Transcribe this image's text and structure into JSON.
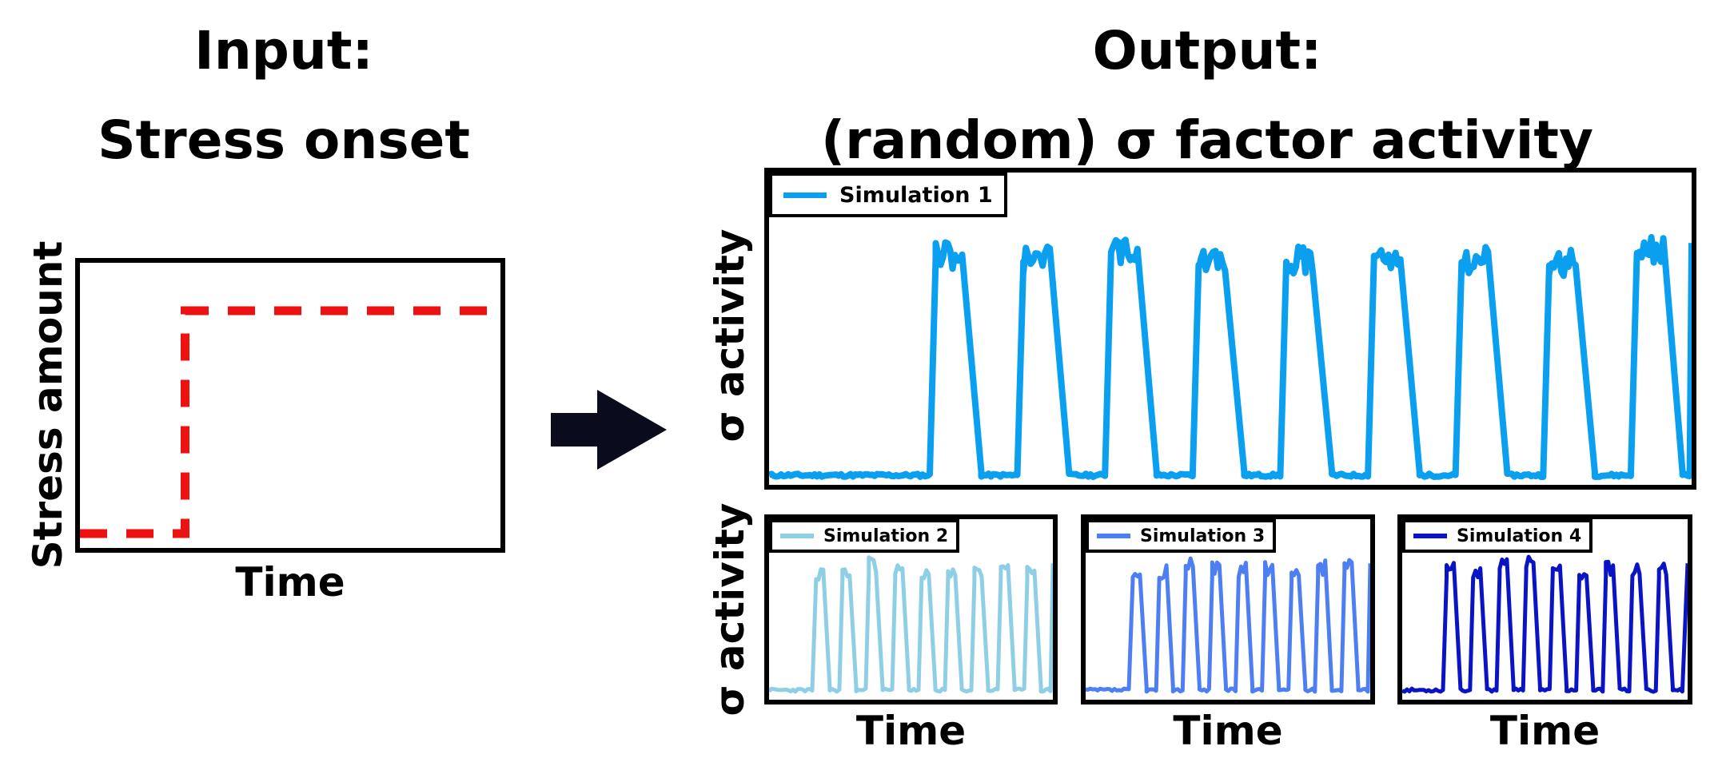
{
  "input": {
    "title_line1": "Input:",
    "title_line2": "Stress onset",
    "xlabel": "Time",
    "ylabel": "Stress amount",
    "line_color": "#ee1111"
  },
  "output": {
    "title_line1": "Output:",
    "title_line2": "(random) σ factor activity",
    "ylabel_top": "σ activity",
    "ylabel_bottom": "σ activity",
    "xlabel_sim2": "Time",
    "xlabel_sim3": "Time",
    "xlabel_sim4": "Time"
  },
  "arrow_color": "#0b0b1e",
  "chart_data": [
    {
      "type": "line",
      "title": "Stress onset",
      "xlabel": "Time",
      "ylabel": "Stress amount",
      "series": [
        {
          "x": [
            0,
            0.25,
            0.25,
            1
          ],
          "values": [
            0,
            0,
            1,
            1
          ],
          "style": "dashed",
          "color": "#ee1111"
        }
      ]
    },
    {
      "type": "line",
      "xlabel": "",
      "ylabel": "σ activity",
      "legend": "top-left",
      "series": [
        {
          "name": "Simulation 1",
          "color": "#0b9fef",
          "onset": 0.175,
          "peaks": 9,
          "period": 0.095
        }
      ]
    },
    {
      "type": "line",
      "xlabel": "Time",
      "ylabel": "σ activity",
      "legend": "top-left",
      "series": [
        {
          "name": "Simulation 2",
          "color": "#8ecfe6",
          "onset": 0.16,
          "peaks": 9,
          "period": 0.093
        }
      ]
    },
    {
      "type": "line",
      "xlabel": "Time",
      "legend": "top-left",
      "series": [
        {
          "name": "Simulation 3",
          "color": "#4d7ef2",
          "onset": 0.16,
          "peaks": 9,
          "period": 0.093
        }
      ]
    },
    {
      "type": "line",
      "xlabel": "Time",
      "legend": "top-left",
      "series": [
        {
          "name": "Simulation 4",
          "color": "#0a14c4",
          "onset": 0.15,
          "peaks": 9,
          "period": 0.093
        }
      ]
    }
  ]
}
